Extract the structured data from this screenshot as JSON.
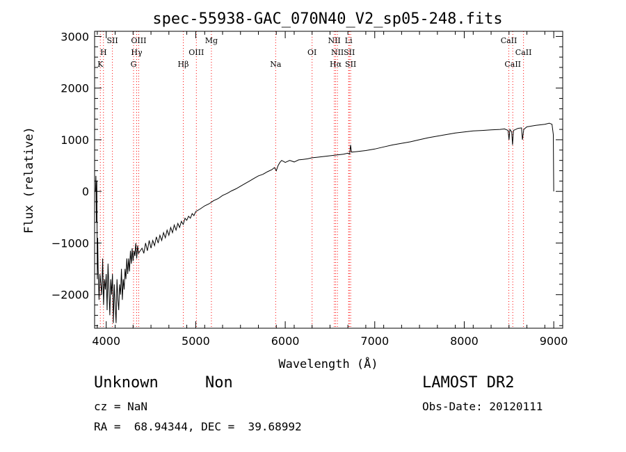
{
  "chart_data": {
    "type": "line",
    "title": "spec-55938-GAC_070N40_V2_sp05-248.fits",
    "xlabel": "Wavelength (Å)",
    "ylabel": "Flux (relative)",
    "xlim": [
      3870,
      9100
    ],
    "ylim": [
      -2650,
      3100
    ],
    "xticks": [
      4000,
      5000,
      6000,
      7000,
      8000,
      9000
    ],
    "yticks": [
      -2000,
      -1000,
      0,
      1000,
      2000,
      3000
    ],
    "grid": false,
    "line_color": "#000000",
    "marker_color": "#ff0000",
    "spectrum": [
      [
        3880,
        0
      ],
      [
        3885,
        300
      ],
      [
        3890,
        -600
      ],
      [
        3895,
        200
      ],
      [
        3900,
        -1700
      ],
      [
        3905,
        -900
      ],
      [
        3910,
        -1500
      ],
      [
        3920,
        -2100
      ],
      [
        3930,
        -1600
      ],
      [
        3940,
        -1800
      ],
      [
        3950,
        -2000
      ],
      [
        3960,
        -1300
      ],
      [
        3970,
        -2200
      ],
      [
        3980,
        -1700
      ],
      [
        3990,
        -1900
      ],
      [
        4000,
        -1600
      ],
      [
        4010,
        -2300
      ],
      [
        4020,
        -1400
      ],
      [
        4030,
        -1900
      ],
      [
        4040,
        -2400
      ],
      [
        4050,
        -1700
      ],
      [
        4060,
        -2000
      ],
      [
        4070,
        -1600
      ],
      [
        4080,
        -2550
      ],
      [
        4090,
        -1800
      ],
      [
        4100,
        -2200
      ],
      [
        4110,
        -2550
      ],
      [
        4120,
        -1700
      ],
      [
        4130,
        -2100
      ],
      [
        4140,
        -2300
      ],
      [
        4150,
        -1800
      ],
      [
        4160,
        -2000
      ],
      [
        4170,
        -1500
      ],
      [
        4180,
        -2100
      ],
      [
        4190,
        -1700
      ],
      [
        4200,
        -1900
      ],
      [
        4210,
        -1500
      ],
      [
        4220,
        -1700
      ],
      [
        4230,
        -1300
      ],
      [
        4240,
        -1600
      ],
      [
        4250,
        -1300
      ],
      [
        4260,
        -1550
      ],
      [
        4270,
        -1150
      ],
      [
        4280,
        -1400
      ],
      [
        4290,
        -1100
      ],
      [
        4300,
        -1350
      ],
      [
        4310,
        -1150
      ],
      [
        4320,
        -1250
      ],
      [
        4330,
        -1000
      ],
      [
        4340,
        -1300
      ],
      [
        4350,
        -1050
      ],
      [
        4360,
        -1200
      ],
      [
        4380,
        -1150
      ],
      [
        4400,
        -1100
      ],
      [
        4420,
        -1200
      ],
      [
        4440,
        -1000
      ],
      [
        4460,
        -1150
      ],
      [
        4480,
        -950
      ],
      [
        4500,
        -1100
      ],
      [
        4520,
        -950
      ],
      [
        4540,
        -1050
      ],
      [
        4560,
        -880
      ],
      [
        4580,
        -1000
      ],
      [
        4600,
        -850
      ],
      [
        4620,
        -950
      ],
      [
        4640,
        -800
      ],
      [
        4660,
        -900
      ],
      [
        4680,
        -750
      ],
      [
        4700,
        -850
      ],
      [
        4720,
        -700
      ],
      [
        4740,
        -800
      ],
      [
        4760,
        -650
      ],
      [
        4780,
        -750
      ],
      [
        4800,
        -620
      ],
      [
        4820,
        -700
      ],
      [
        4840,
        -580
      ],
      [
        4860,
        -640
      ],
      [
        4880,
        -520
      ],
      [
        4900,
        -560
      ],
      [
        4920,
        -480
      ],
      [
        4940,
        -520
      ],
      [
        4960,
        -430
      ],
      [
        4980,
        -470
      ],
      [
        5000,
        -390
      ],
      [
        5050,
        -340
      ],
      [
        5100,
        -280
      ],
      [
        5150,
        -240
      ],
      [
        5200,
        -180
      ],
      [
        5250,
        -140
      ],
      [
        5300,
        -80
      ],
      [
        5350,
        -40
      ],
      [
        5400,
        10
      ],
      [
        5450,
        50
      ],
      [
        5500,
        100
      ],
      [
        5550,
        150
      ],
      [
        5600,
        200
      ],
      [
        5650,
        250
      ],
      [
        5700,
        300
      ],
      [
        5750,
        330
      ],
      [
        5800,
        380
      ],
      [
        5850,
        420
      ],
      [
        5880,
        460
      ],
      [
        5900,
        400
      ],
      [
        5920,
        500
      ],
      [
        5940,
        560
      ],
      [
        5960,
        600
      ],
      [
        5980,
        580
      ],
      [
        6000,
        560
      ],
      [
        6050,
        600
      ],
      [
        6100,
        570
      ],
      [
        6150,
        610
      ],
      [
        6200,
        620
      ],
      [
        6250,
        630
      ],
      [
        6300,
        650
      ],
      [
        6350,
        660
      ],
      [
        6400,
        670
      ],
      [
        6450,
        680
      ],
      [
        6500,
        690
      ],
      [
        6550,
        700
      ],
      [
        6600,
        710
      ],
      [
        6650,
        720
      ],
      [
        6700,
        740
      ],
      [
        6720,
        720
      ],
      [
        6730,
        900
      ],
      [
        6740,
        760
      ],
      [
        6800,
        770
      ],
      [
        6900,
        790
      ],
      [
        7000,
        820
      ],
      [
        7100,
        860
      ],
      [
        7200,
        900
      ],
      [
        7300,
        930
      ],
      [
        7400,
        960
      ],
      [
        7500,
        1000
      ],
      [
        7600,
        1040
      ],
      [
        7700,
        1070
      ],
      [
        7800,
        1100
      ],
      [
        7900,
        1130
      ],
      [
        8000,
        1150
      ],
      [
        8100,
        1170
      ],
      [
        8200,
        1180
      ],
      [
        8300,
        1190
      ],
      [
        8400,
        1200
      ],
      [
        8450,
        1210
      ],
      [
        8490,
        1180
      ],
      [
        8500,
        1000
      ],
      [
        8510,
        1200
      ],
      [
        8530,
        1150
      ],
      [
        8540,
        900
      ],
      [
        8550,
        1180
      ],
      [
        8600,
        1220
      ],
      [
        8640,
        1230
      ],
      [
        8650,
        1000
      ],
      [
        8665,
        1200
      ],
      [
        8700,
        1250
      ],
      [
        8800,
        1280
      ],
      [
        8900,
        1300
      ],
      [
        8950,
        1320
      ],
      [
        8980,
        1300
      ],
      [
        8995,
        1100
      ],
      [
        9000,
        0
      ]
    ],
    "lines": [
      {
        "label": "K",
        "x": 3934,
        "row": 3
      },
      {
        "label": "H",
        "x": 3969,
        "row": 2
      },
      {
        "label": "SII",
        "x": 4069,
        "row": 1
      },
      {
        "label": "OIII",
        "x": 4363,
        "row": 1
      },
      {
        "label": "Hγ",
        "x": 4340,
        "row": 2
      },
      {
        "label": "G",
        "x": 4305,
        "row": 3
      },
      {
        "label": "Hβ",
        "x": 4861,
        "row": 3
      },
      {
        "label": "OIII",
        "x": 5007,
        "row": 2
      },
      {
        "label": "Mg",
        "x": 5175,
        "row": 1
      },
      {
        "label": "Na",
        "x": 5893,
        "row": 3
      },
      {
        "label": "OI",
        "x": 6300,
        "row": 2
      },
      {
        "label": "NII",
        "x": 6548,
        "row": 1
      },
      {
        "label": "Li",
        "x": 6708,
        "row": 1
      },
      {
        "label": "NII",
        "x": 6583,
        "row": 2
      },
      {
        "label": "SII",
        "x": 6716,
        "row": 2
      },
      {
        "label": "Hα",
        "x": 6563,
        "row": 3
      },
      {
        "label": "SII",
        "x": 6731,
        "row": 3
      },
      {
        "label": "CaII",
        "x": 8498,
        "row": 1
      },
      {
        "label": "CaII",
        "x": 8662,
        "row": 2
      },
      {
        "label": "CaII",
        "x": 8542,
        "row": 3
      }
    ]
  },
  "info": {
    "class": "Unknown",
    "subclass": "Non",
    "survey": "LAMOST DR2",
    "cz": "cz = NaN",
    "obs_date": "Obs-Date: 20120111",
    "radec": "RA =  68.94344, DEC =  39.68992"
  }
}
